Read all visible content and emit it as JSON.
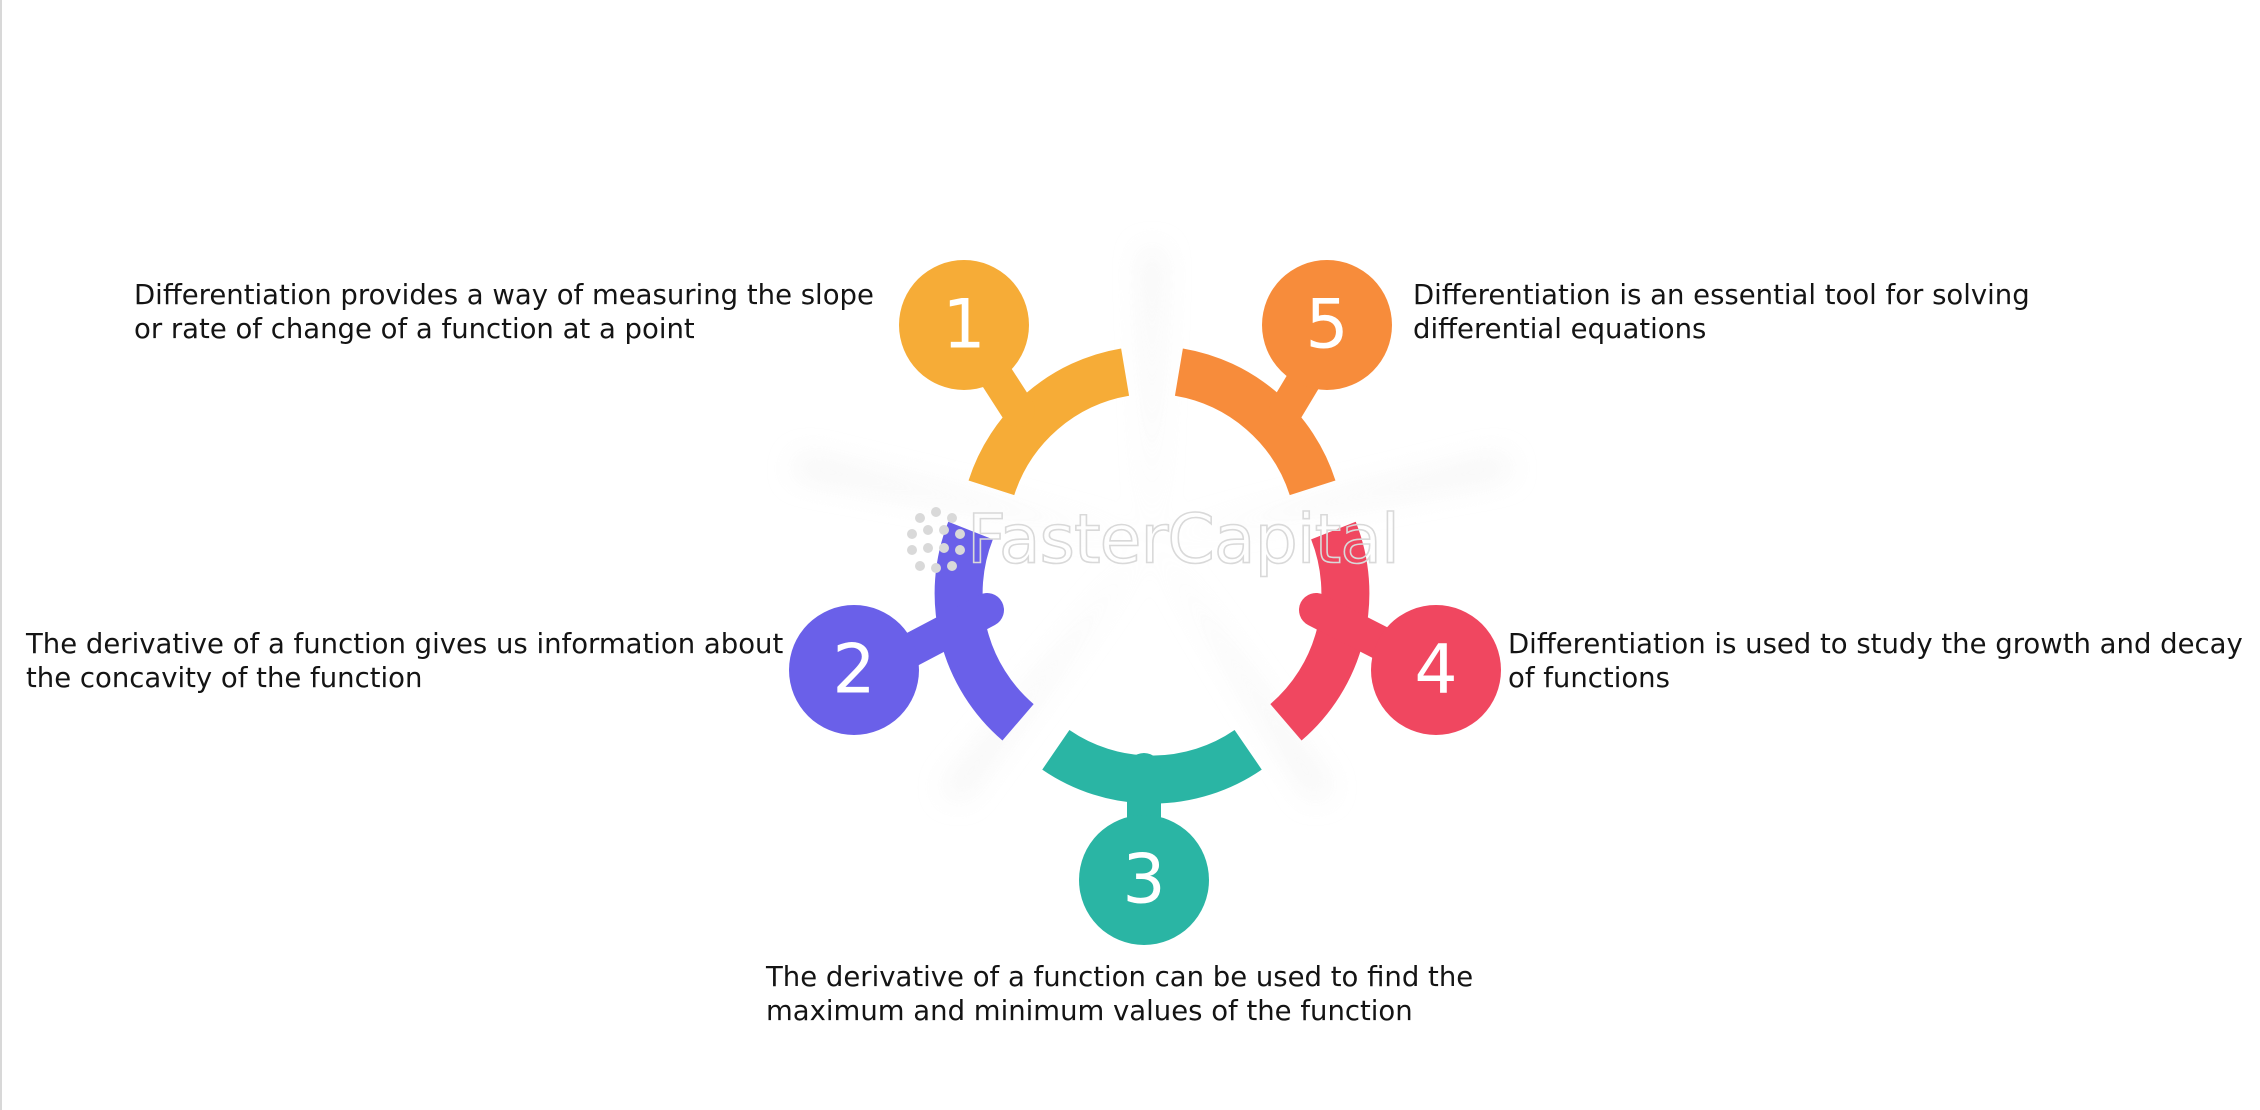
{
  "watermark": {
    "text": "FasterCapital"
  },
  "steps": [
    {
      "number": "1",
      "color": "#f6ac37",
      "text": "Differentiation provides a way of measuring the slope\nor rate of change of a function at a point"
    },
    {
      "number": "2",
      "color": "#6a60e9",
      "text": "The derivative of a function gives us information about\nthe concavity of the function"
    },
    {
      "number": "3",
      "color": "#2ab5a4",
      "text": "The derivative of a function can be used to find the\nmaximum and minimum values of the function"
    },
    {
      "number": "4",
      "color": "#f04760",
      "text": "Differentiation is used to study the growth and decay\nof functions"
    },
    {
      "number": "5",
      "color": "#f78c3b",
      "text": "Differentiation is an essential tool for solving\ndifferential equations"
    }
  ]
}
